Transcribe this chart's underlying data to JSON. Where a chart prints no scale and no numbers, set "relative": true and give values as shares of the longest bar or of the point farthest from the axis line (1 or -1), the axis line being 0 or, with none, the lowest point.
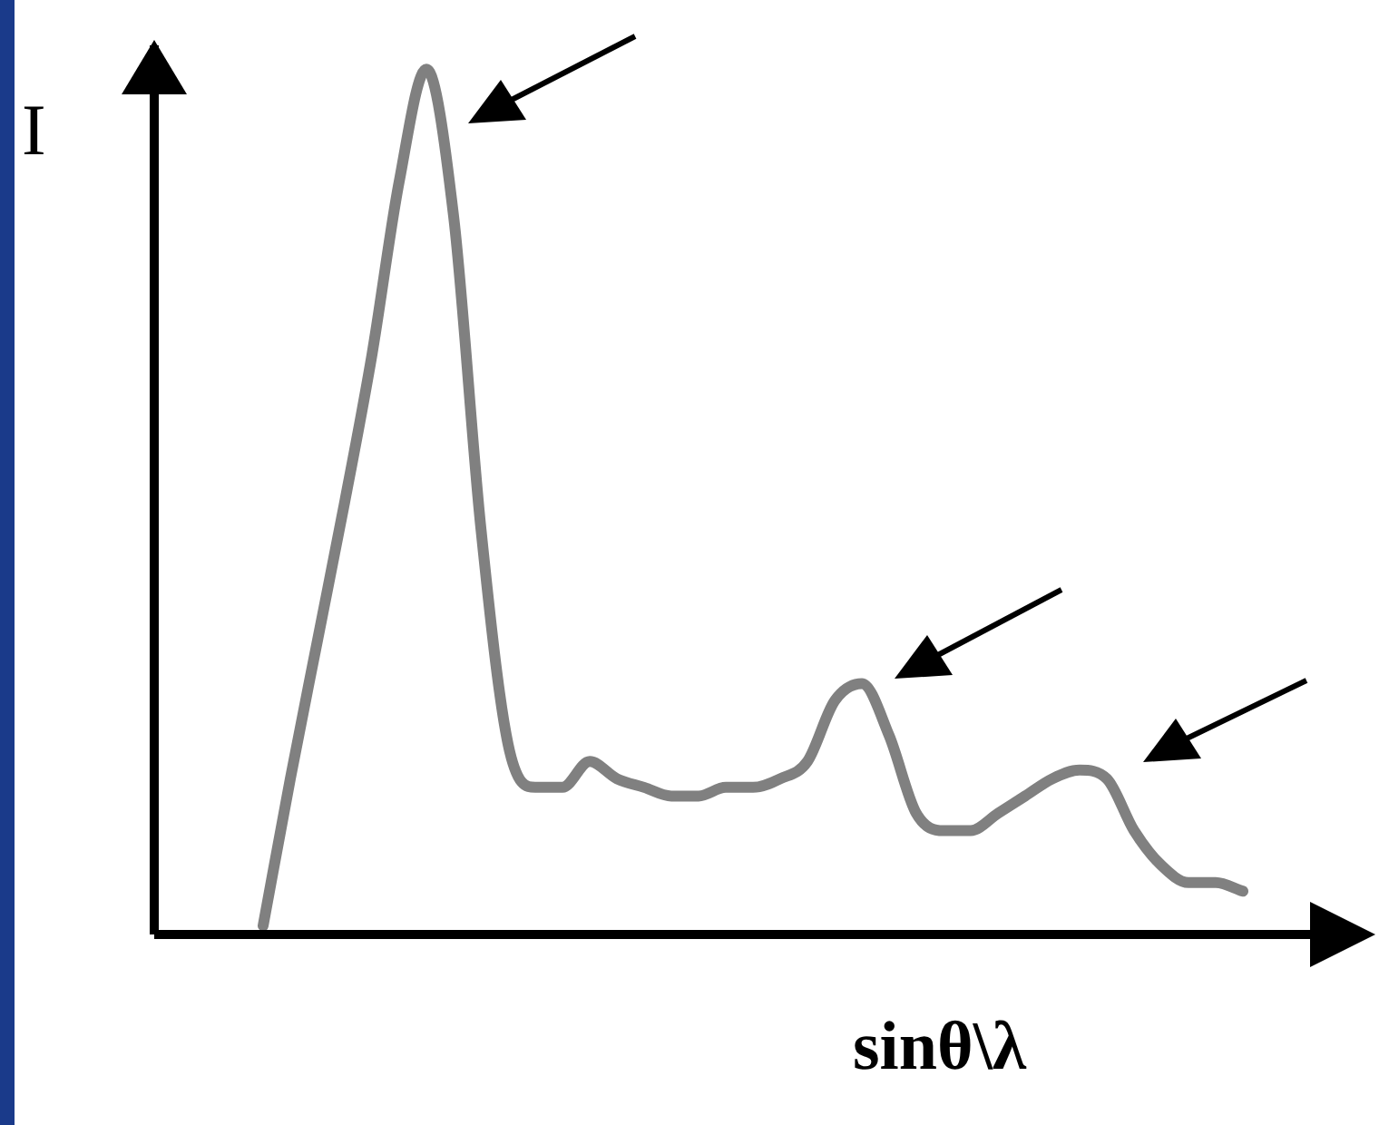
{
  "chart_data": {
    "type": "line",
    "relative": true,
    "xlabel": "sinθ\\λ",
    "ylabel": "I",
    "color": "#808080",
    "marker": "none",
    "categories": [
      null,
      null,
      null,
      null,
      null,
      null,
      null,
      null,
      null,
      null,
      null,
      null,
      null,
      null,
      null,
      null,
      null,
      null,
      null,
      null,
      null,
      null,
      null,
      null,
      null,
      null,
      null,
      null,
      null,
      null,
      null,
      null,
      null,
      null,
      null,
      null,
      null,
      null,
      null,
      null,
      null,
      null,
      null,
      null,
      null
    ],
    "values": [
      null,
      null,
      null,
      null,
      0.01,
      0.18,
      0.34,
      0.5,
      0.67,
      0.87,
      1.0,
      0.83,
      0.47,
      0.22,
      0.17,
      0.17,
      0.2,
      0.18,
      0.17,
      0.16,
      0.16,
      0.17,
      0.17,
      0.18,
      0.2,
      0.27,
      0.29,
      0.23,
      0.14,
      0.12,
      0.12,
      0.14,
      0.16,
      0.18,
      0.19,
      0.18,
      0.12,
      0.08,
      0.06,
      0.06,
      0.05,
      null,
      null,
      null,
      null
    ]
  }
}
